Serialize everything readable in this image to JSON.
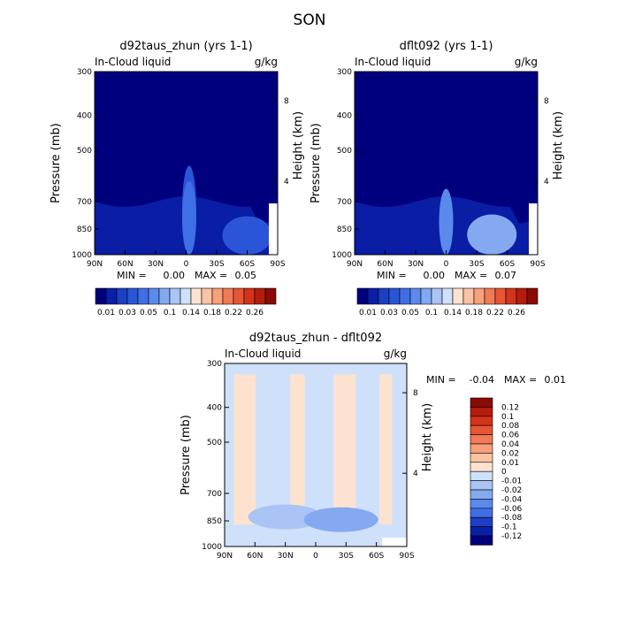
{
  "figure": {
    "season": "SON"
  },
  "chart_data": [
    {
      "type": "heatmap",
      "title": "d92taus_zhun (yrs 1-1)",
      "subtitle_left": "In-Cloud liquid",
      "subtitle_right": "g/kg",
      "ylabel": "Pressure (mb)",
      "ylabel_right": "Height (km)",
      "y_ticks": [
        "300",
        "400",
        "500",
        "700",
        "850",
        "1000"
      ],
      "y_ticks_right": [
        "8",
        "4"
      ],
      "x_ticks": [
        "90N",
        "60N",
        "30N",
        "0",
        "30S",
        "60S",
        "90S"
      ],
      "stats": {
        "min_label": "MIN =",
        "min": "0.00",
        "max_label": "MAX =",
        "max": "0.05"
      },
      "features": [
        {
          "lat": -3,
          "p_top": 560,
          "level": 3
        },
        {
          "lat": -3,
          "p_top": 620,
          "level": 4
        },
        {
          "lat": -60,
          "p_top": 780,
          "level": 3
        }
      ]
    },
    {
      "type": "heatmap",
      "title": "dflt092 (yrs 1-1)",
      "subtitle_left": "In-Cloud liquid",
      "subtitle_right": "g/kg",
      "ylabel": "Pressure (mb)",
      "ylabel_right": "Height (km)",
      "y_ticks": [
        "300",
        "400",
        "500",
        "700",
        "850",
        "1000"
      ],
      "y_ticks_right": [
        "8",
        "4"
      ],
      "x_ticks": [
        "90N",
        "60N",
        "30N",
        "0",
        "30S",
        "60S",
        "90S"
      ],
      "stats": {
        "min_label": "MIN =",
        "min": "0.00",
        "max_label": "MAX =",
        "max": "0.07"
      },
      "features": [
        {
          "lat": 0,
          "p_top": 650,
          "level": 5
        },
        {
          "lat": -45,
          "p_top": 770,
          "level": 6
        }
      ]
    },
    {
      "type": "heatmap",
      "title": "d92taus_zhun - dflt092",
      "subtitle_left": "In-Cloud liquid",
      "subtitle_right": "g/kg",
      "ylabel": "Pressure (mb)",
      "ylabel_right": "Height (km)",
      "y_ticks": [
        "300",
        "400",
        "500",
        "700",
        "850",
        "1000"
      ],
      "y_ticks_right": [
        "8",
        "4"
      ],
      "x_ticks": [
        "90N",
        "60N",
        "30N",
        "0",
        "30S",
        "60S",
        "90S"
      ],
      "stats": {
        "min_label": "MIN =",
        "min": "-0.04",
        "max_label": "MAX =",
        "max": "0.01"
      },
      "features": [
        {
          "lat": 30,
          "p_top": 760,
          "level": -1
        },
        {
          "lat": -25,
          "p_top": 790,
          "level": -2
        }
      ]
    }
  ],
  "colorbar_main": {
    "labels": [
      "0.01",
      "0.03",
      "0.05",
      "0.1",
      "0.14",
      "0.18",
      "0.22",
      "0.26"
    ],
    "colors": [
      "#00007f",
      "#0a1fa8",
      "#1d3fc4",
      "#2a55d8",
      "#3f6ee6",
      "#5b89ec",
      "#84a9f1",
      "#a9c4f5",
      "#cfe0fa",
      "#fde3cf",
      "#fbc3a3",
      "#f7a07a",
      "#f27a55",
      "#e85533",
      "#d4321a",
      "#b51c0c",
      "#8b0a05"
    ]
  },
  "colorbar_diff": {
    "labels": [
      "0.12",
      "0.1",
      "0.08",
      "0.06",
      "0.04",
      "0.02",
      "0.01",
      "0",
      "-0.01",
      "-0.02",
      "-0.04",
      "-0.06",
      "-0.08",
      "-0.1",
      "-0.12"
    ],
    "colors": [
      "#8b0a05",
      "#b51c0c",
      "#d4321a",
      "#e85533",
      "#f27a55",
      "#f7a07a",
      "#fbc3a3",
      "#fde3cf",
      "#cfe0fa",
      "#a9c4f5",
      "#84a9f1",
      "#5b89ec",
      "#3f6ee6",
      "#1d3fc4",
      "#0a1fa8",
      "#00007f"
    ]
  }
}
